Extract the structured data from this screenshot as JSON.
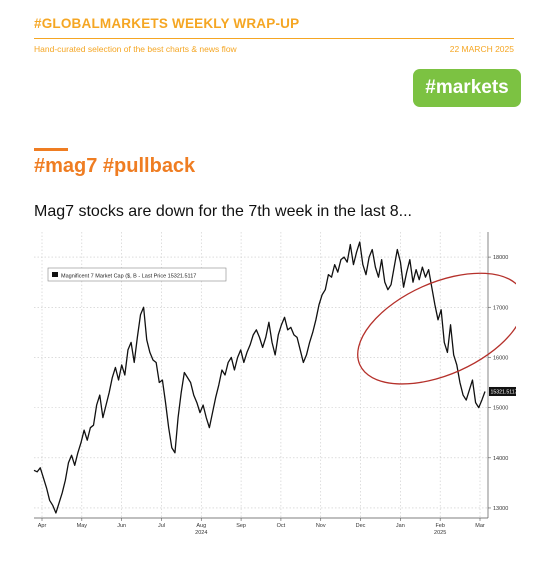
{
  "header": {
    "title": "#GLOBALMARKETS WEEKLY WRAP-UP",
    "subtitle": "Hand-curated selection of the best charts & news flow",
    "date": "22 MARCH 2025"
  },
  "tag": {
    "label": "#markets"
  },
  "section": {
    "title": "#mag7 #pullback",
    "headline": "Mag7 stocks are down for the 7th week in the last 8..."
  },
  "colors": {
    "brand_orange": "#f5a623",
    "title_orange": "#ef7d22",
    "tag_green": "#7cc242",
    "line": "#111111",
    "annotation_circle": "#b5312b",
    "grid": "#c8c8c8"
  },
  "chart_data": {
    "type": "line",
    "legend_label": "Magnificent 7 Market Cap ($, B - Last Price 15321.5117",
    "last_price_label": "15321.5117",
    "ylim": [
      12800,
      18500
    ],
    "yticks": [
      13000,
      14000,
      15000,
      16000,
      17000,
      18000
    ],
    "ytick_labels": [
      "13000",
      "14000",
      "15000",
      "16000",
      "17000",
      "18000"
    ],
    "x_month_labels": [
      "Apr",
      "May",
      "Jun",
      "Jul",
      "Aug",
      "Sep",
      "Oct",
      "Nov",
      "Dec",
      "Jan",
      "Feb",
      "Mar"
    ],
    "x_year_labels": [
      {
        "label": "2024",
        "under": "Aug"
      },
      {
        "label": "2025",
        "under": "Feb"
      }
    ],
    "grid": true,
    "legend_position": "top-left",
    "series": [
      {
        "values": [
          13750,
          13720,
          13800,
          13600,
          13400,
          13150,
          13050,
          12900,
          13100,
          13300,
          13550,
          13900,
          14050,
          13850,
          14100,
          14300,
          14550,
          14350,
          14600,
          14650,
          15050,
          15250,
          14800,
          15050,
          15300,
          15600,
          15800,
          15550,
          15850,
          15650,
          16150,
          16300,
          15900,
          16400,
          16850,
          17000,
          16350,
          16100,
          15950,
          15900,
          15500,
          15550,
          15100,
          14600,
          14200,
          14100,
          14800,
          15300,
          15700,
          15600,
          15500,
          15250,
          15100,
          14900,
          15050,
          14800,
          14600,
          14900,
          15200,
          15450,
          15750,
          15650,
          15900,
          16000,
          15750,
          16000,
          16150,
          15900,
          16100,
          16250,
          16450,
          16550,
          16400,
          16200,
          16400,
          16700,
          16300,
          16050,
          16450,
          16650,
          16800,
          16550,
          16600,
          16450,
          16400,
          16150,
          15900,
          16050,
          16300,
          16500,
          16750,
          17050,
          17250,
          17350,
          17650,
          17600,
          17850,
          17700,
          17950,
          18000,
          17900,
          18250,
          17850,
          18100,
          18300,
          17850,
          17650,
          18000,
          18150,
          17800,
          17600,
          17950,
          17500,
          17350,
          17450,
          17800,
          18150,
          17900,
          17400,
          17700,
          17950,
          17500,
          17750,
          17550,
          17800,
          17600,
          17750,
          17400,
          17050,
          16750,
          16950,
          16300,
          16100,
          16650,
          16050,
          15850,
          15500,
          15250,
          15150,
          15350,
          15550,
          15100,
          15000,
          15150,
          15321.5117
        ]
      }
    ]
  }
}
